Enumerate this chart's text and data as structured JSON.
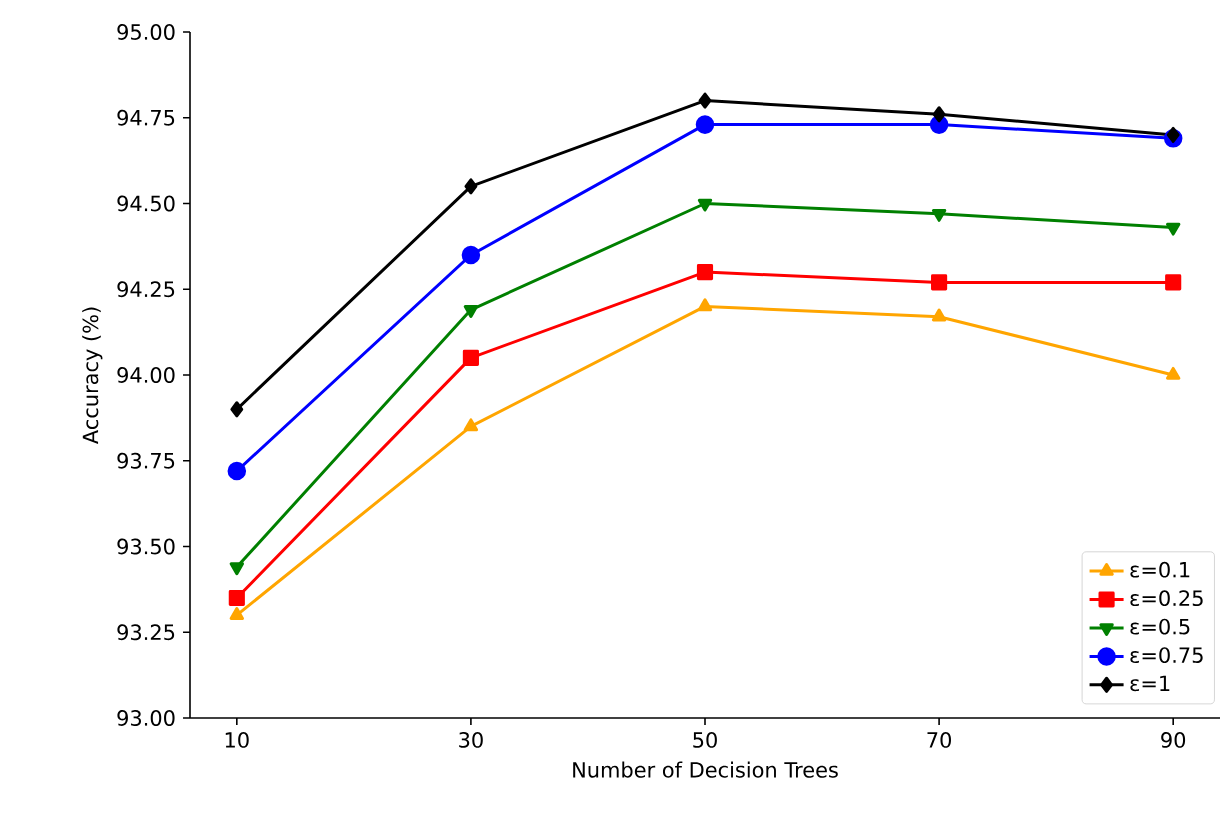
{
  "chart_data": {
    "type": "line",
    "xlabel": "Number of Decision Trees",
    "ylabel": "Accuracy (%)",
    "x": [
      10,
      30,
      50,
      70,
      90
    ],
    "series": [
      {
        "name": "ε=0.1",
        "color": "#ffa500",
        "marker": "triangle",
        "values": [
          93.3,
          93.85,
          94.2,
          94.17,
          94.0
        ]
      },
      {
        "name": "ε=0.25",
        "color": "#ff0000",
        "marker": "square",
        "values": [
          93.35,
          94.05,
          94.3,
          94.27,
          94.27
        ]
      },
      {
        "name": "ε=0.5",
        "color": "#008000",
        "marker": "triangle-down",
        "values": [
          93.44,
          94.19,
          94.5,
          94.47,
          94.43
        ]
      },
      {
        "name": "ε=0.75",
        "color": "#0000ff",
        "marker": "circle",
        "values": [
          93.72,
          94.35,
          94.73,
          94.73,
          94.69
        ]
      },
      {
        "name": "ε=1",
        "color": "#000000",
        "marker": "diamond",
        "values": [
          93.9,
          94.55,
          94.8,
          94.76,
          94.7
        ]
      }
    ],
    "xlim": [
      6,
      94
    ],
    "xticks": [
      10,
      30,
      50,
      70,
      90
    ],
    "ylim": [
      93,
      95
    ],
    "yticks": [
      {
        "value": 93,
        "label": "93.00"
      },
      {
        "value": 93.25,
        "label": "93.25"
      },
      {
        "value": 93.5,
        "label": "93.50"
      },
      {
        "value": 93.75,
        "label": "93.75"
      },
      {
        "value": 94,
        "label": "94.00"
      },
      {
        "value": 94.25,
        "label": "94.25"
      },
      {
        "value": 94.5,
        "label": "94.50"
      },
      {
        "value": 94.75,
        "label": "94.75"
      },
      {
        "value": 95,
        "label": "95.00"
      }
    ],
    "grid": false,
    "legend": "bottom right",
    "line_style": "solid"
  }
}
